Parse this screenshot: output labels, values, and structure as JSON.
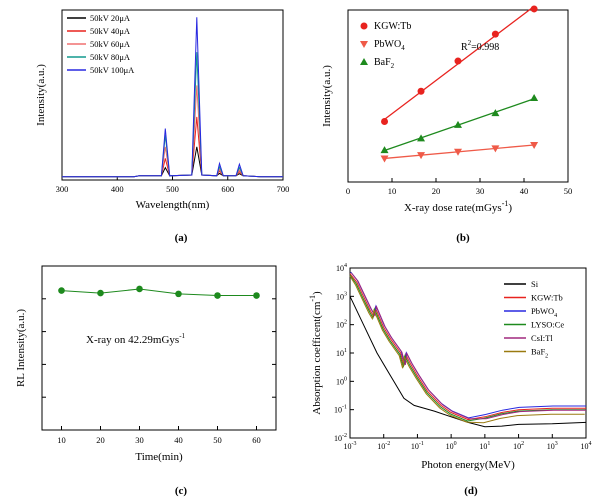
{
  "panels": {
    "a": {
      "caption": "(a)"
    },
    "b": {
      "caption": "(b)"
    },
    "c": {
      "caption": "(c)"
    },
    "d": {
      "caption": "(d)"
    }
  },
  "chart_data": [
    {
      "panel": "a",
      "type": "line",
      "xlabel": "Wavelength(nm)",
      "ylabel": "Intensity(a.u.)",
      "xlim": [
        300,
        700
      ],
      "ylim": [
        0,
        1
      ],
      "xticks": [
        300,
        400,
        500,
        600,
        700
      ],
      "yticks_shown": false,
      "legend_position": "top-left",
      "x": [
        300,
        430,
        440,
        480,
        487,
        495,
        535,
        544,
        553,
        580,
        585,
        592,
        615,
        621,
        628,
        660,
        700
      ],
      "series": [
        {
          "name": "50kV 20μA",
          "color": "#000000",
          "values": [
            0.02,
            0.02,
            0.025,
            0.025,
            0.075,
            0.025,
            0.03,
            0.2,
            0.03,
            0.025,
            0.04,
            0.025,
            0.025,
            0.038,
            0.025,
            0.02,
            0.02
          ]
        },
        {
          "name": "50kV 40μA",
          "color": "#e8231f",
          "values": [
            0.02,
            0.02,
            0.025,
            0.025,
            0.13,
            0.025,
            0.03,
            0.38,
            0.03,
            0.025,
            0.055,
            0.025,
            0.025,
            0.05,
            0.025,
            0.02,
            0.02
          ]
        },
        {
          "name": "50kV 60μA",
          "color": "#f07070",
          "values": [
            0.02,
            0.02,
            0.025,
            0.025,
            0.2,
            0.025,
            0.03,
            0.57,
            0.03,
            0.025,
            0.065,
            0.025,
            0.025,
            0.06,
            0.025,
            0.02,
            0.02
          ]
        },
        {
          "name": "50kV 80μA",
          "color": "#129a8e",
          "values": [
            0.02,
            0.02,
            0.025,
            0.025,
            0.27,
            0.025,
            0.03,
            0.77,
            0.03,
            0.025,
            0.08,
            0.025,
            0.025,
            0.075,
            0.025,
            0.02,
            0.02
          ]
        },
        {
          "name": "50kV 100μA",
          "color": "#2828e0",
          "values": [
            0.02,
            0.02,
            0.025,
            0.025,
            0.31,
            0.025,
            0.03,
            0.98,
            0.03,
            0.025,
            0.1,
            0.025,
            0.025,
            0.095,
            0.025,
            0.02,
            0.02
          ]
        }
      ]
    },
    {
      "panel": "b",
      "type": "scatter",
      "xlabel": "X-ray dose rate(mGys",
      "xlabel_sup": "-1",
      "xlabel_close": ")",
      "ylabel": "Intensity(a.u.)",
      "xlim": [
        0,
        50
      ],
      "ylim": [
        0,
        1
      ],
      "xticks": [
        0,
        10,
        20,
        30,
        40,
        50
      ],
      "yticks_shown": false,
      "legend_position": "top-left",
      "annotation": {
        "text": "R",
        "sup": "2",
        "rest": "=0.998"
      },
      "series": [
        {
          "name": "KGW:Tb",
          "color": "#e8231f",
          "marker": "circle",
          "x": [
            8.3,
            16.6,
            25.0,
            33.5,
            42.3
          ],
          "values": [
            0.36,
            0.54,
            0.72,
            0.88,
            1.03
          ]
        },
        {
          "name": "PbWO",
          "name_sub": "4",
          "color": "#ef5a48",
          "marker": "triangle-down",
          "x": [
            8.3,
            16.6,
            25.0,
            33.5,
            42.3
          ],
          "values": [
            0.14,
            0.16,
            0.18,
            0.2,
            0.22
          ]
        },
        {
          "name": "BaF",
          "name_sub": "2",
          "color": "#1e8a1e",
          "marker": "triangle-up",
          "x": [
            8.3,
            16.6,
            25.0,
            33.5,
            42.3
          ],
          "values": [
            0.19,
            0.26,
            0.34,
            0.41,
            0.5
          ]
        }
      ]
    },
    {
      "panel": "c",
      "type": "line",
      "xlabel": "Time(min)",
      "ylabel": "RL Intensity(a.u.)",
      "xlim": [
        5,
        65
      ],
      "ylim": [
        0,
        1
      ],
      "xticks": [
        10,
        20,
        30,
        40,
        50,
        60
      ],
      "yticks_shown": false,
      "annotation": {
        "text": "X-ray on 42.29mGys",
        "sup": "-1"
      },
      "series": [
        {
          "name": "",
          "color": "#1e8a1e",
          "marker": "circle",
          "x": [
            10,
            20,
            30,
            40,
            50,
            60
          ],
          "values": [
            0.85,
            0.835,
            0.86,
            0.83,
            0.82,
            0.82
          ]
        }
      ]
    },
    {
      "panel": "d",
      "type": "line",
      "xlabel": "Photon energy(MeV)",
      "ylabel": "Absorption coefficent(cm",
      "ylabel_sup": "-1",
      "ylabel_close": ")",
      "xscale": "log",
      "yscale": "log",
      "xlim_exp": [
        -3,
        4
      ],
      "ylim_exp": [
        -2,
        4
      ],
      "xticks_exp": [
        -3,
        -2,
        -1,
        0,
        1,
        2,
        3,
        4
      ],
      "yticks_exp": [
        -2,
        -1,
        0,
        1,
        2,
        3,
        4
      ],
      "tick_base": "10",
      "legend_position": "top-right",
      "series": [
        {
          "name": "Si",
          "color": "#000000"
        },
        {
          "name": "KGW:Tb",
          "color": "#e8231f"
        },
        {
          "name": "PbWO",
          "name_sub": "4",
          "color": "#2828e0"
        },
        {
          "name": "LYSO:Ce",
          "color": "#1e8a1e"
        },
        {
          "name": "CsI:Tl",
          "color": "#a0287f"
        },
        {
          "name": "BaF",
          "name_sub": "2",
          "color": "#9a7a10"
        }
      ]
    }
  ]
}
